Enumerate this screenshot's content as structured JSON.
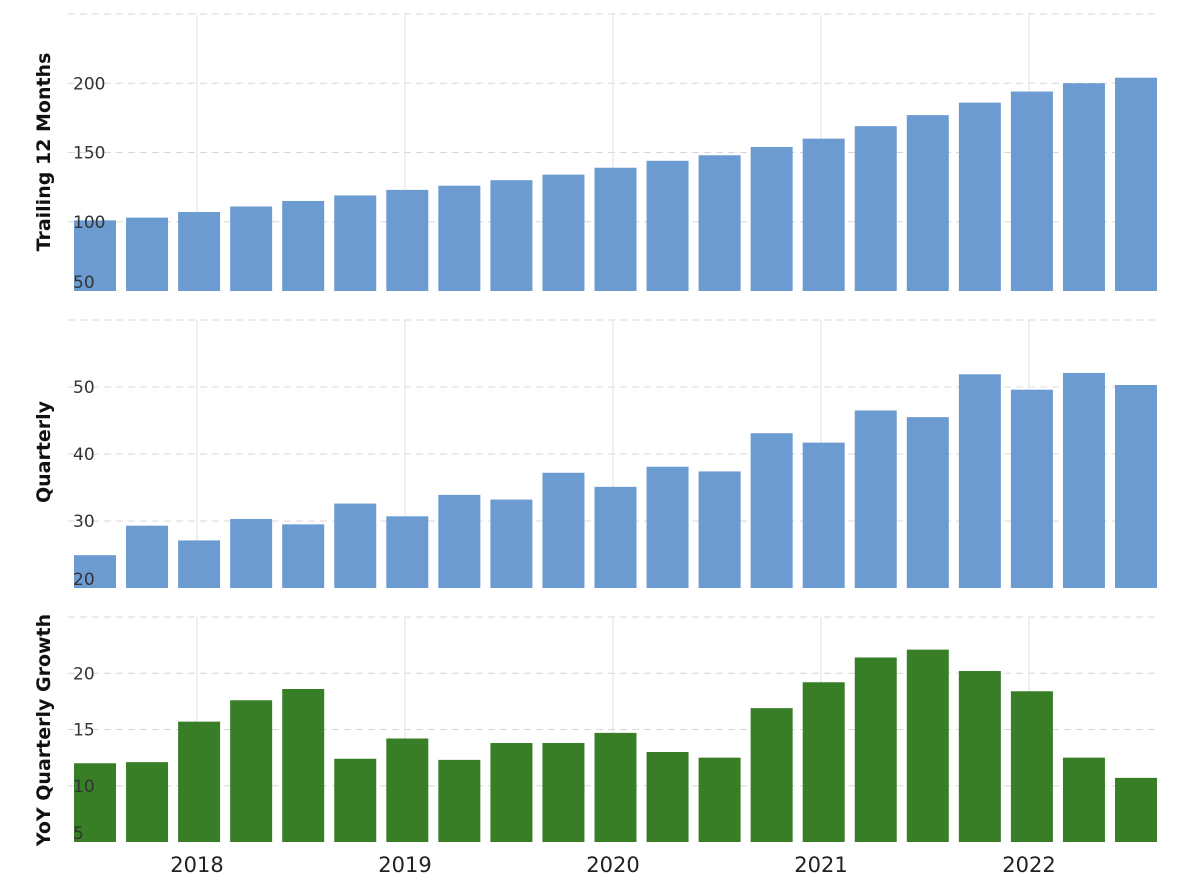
{
  "chart_data": [
    {
      "type": "bar",
      "ylabel": "Trailing 12 Months",
      "ylim": [
        50,
        250
      ],
      "yticks": [
        50,
        100,
        150,
        200
      ],
      "color": "#6b9bd1",
      "grid": true,
      "values": [
        101,
        103,
        107,
        111,
        115,
        119,
        123,
        126,
        130,
        134,
        139,
        144,
        148,
        154,
        160,
        169,
        177,
        186,
        194,
        200,
        204
      ]
    },
    {
      "type": "bar",
      "ylabel": "Quarterly",
      "ylim": [
        20,
        60
      ],
      "yticks": [
        20,
        30,
        40,
        50
      ],
      "color": "#6b9bd1",
      "grid": true,
      "values": [
        24.9,
        29.3,
        27.1,
        30.3,
        29.5,
        32.6,
        30.7,
        33.9,
        33.2,
        37.2,
        35.1,
        38.1,
        37.4,
        43.1,
        41.7,
        46.5,
        45.5,
        51.9,
        49.6,
        52.1,
        50.3
      ]
    },
    {
      "type": "bar",
      "ylabel": "YoY Quarterly Growth",
      "ylim": [
        5,
        25
      ],
      "yticks": [
        5,
        10,
        15,
        20
      ],
      "color": "#377e27",
      "grid": true,
      "values": [
        12.0,
        12.1,
        15.7,
        17.6,
        18.6,
        12.4,
        14.2,
        12.3,
        13.8,
        13.8,
        14.7,
        13.0,
        12.5,
        16.9,
        19.2,
        21.4,
        22.1,
        20.2,
        18.4,
        12.5,
        10.7
      ]
    }
  ],
  "x_axis": {
    "labels": [
      "2018",
      "2019",
      "2020",
      "2021",
      "2022"
    ]
  }
}
